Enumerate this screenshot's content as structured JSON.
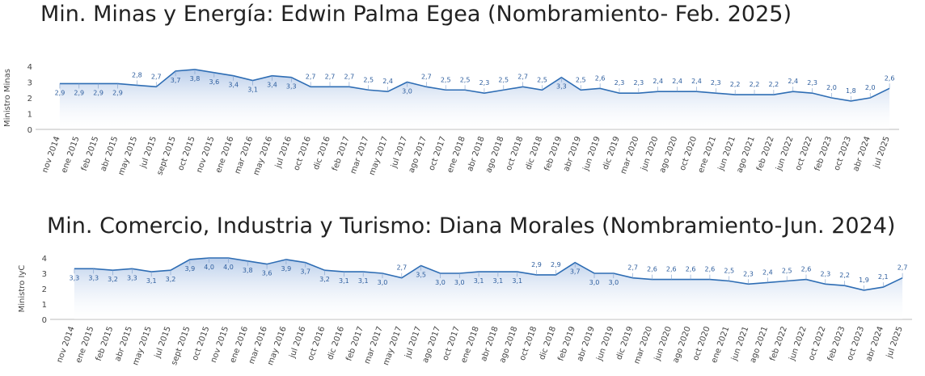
{
  "chart_data": [
    {
      "type": "area",
      "title": "Min. Minas y Energía: Edwin Palma Egea (Nombramiento- Feb. 2025)",
      "y_label": "Ministro Minas",
      "categories": [
        "nov 2014",
        "ene 2015",
        "feb 2015",
        "abr 2015",
        "may 2015",
        "jul 2015",
        "sept 2015",
        "oct 2015",
        "nov 2015",
        "ene 2016",
        "mar 2016",
        "may 2016",
        "jul 2016",
        "oct 2016",
        "dic 2016",
        "feb 2017",
        "mar 2017",
        "may 2017",
        "jul 2017",
        "ago 2017",
        "oct 2017",
        "ene 2018",
        "abr 2018",
        "ago 2018",
        "oct 2018",
        "dic 2018",
        "feb 2019",
        "abr 2019",
        "jun 2019",
        "dic 2019",
        "mar 2020",
        "jun 2020",
        "ago 2020",
        "oct 2020",
        "ene 2021",
        "jun 2021",
        "ago 2021",
        "feb 2022",
        "jun 2022",
        "oct 2022",
        "feb 2023",
        "oct 2023",
        "abr 2024",
        "jul 2025"
      ],
      "values": [
        2.9,
        2.9,
        2.9,
        2.9,
        2.8,
        2.7,
        3.7,
        3.8,
        3.6,
        3.4,
        3.1,
        3.4,
        3.3,
        2.7,
        2.7,
        2.7,
        2.5,
        2.4,
        3.0,
        2.7,
        2.5,
        2.5,
        2.3,
        2.5,
        2.7,
        2.5,
        3.3,
        2.5,
        2.6,
        2.3,
        2.3,
        2.4,
        2.4,
        2.4,
        2.3,
        2.2,
        2.2,
        2.2,
        2.4,
        2.3,
        2.0,
        1.8,
        2.0,
        2.6
      ],
      "value_labels": [
        "2,9",
        "2,9",
        "2,9",
        "2,9",
        "2,8",
        "2,7",
        "3,7",
        "3,8",
        "3,6",
        "3,4",
        "3,1",
        "3,4",
        "3,3",
        "2,7",
        "2,7",
        "2,7",
        "2,5",
        "2,4",
        "3,0",
        "2,7",
        "2,5",
        "2,5",
        "2,3",
        "2,5",
        "2,7",
        "2,5",
        "3,3",
        "2,5",
        "2,6",
        "2,3",
        "2,3",
        "2,4",
        "2,4",
        "2,4",
        "2,3",
        "2,2",
        "2,2",
        "2,2",
        "2,4",
        "2,3",
        "2,0",
        "1,8",
        "2,0",
        "2,6"
      ],
      "color": "#2e6db4",
      "ylim": [
        0,
        4
      ],
      "yticks": [
        0,
        1,
        2,
        3,
        4
      ]
    },
    {
      "type": "area",
      "title": "Min. Comercio, Industria y Turismo: Diana Morales (Nombramiento-Jun. 2024)",
      "y_label": "Ministro IyC",
      "categories": [
        "nov 2014",
        "ene 2015",
        "feb 2015",
        "abr 2015",
        "may 2015",
        "jul 2015",
        "sept 2015",
        "oct 2015",
        "nov 2015",
        "ene 2016",
        "mar 2016",
        "may 2016",
        "jul 2016",
        "oct 2016",
        "dic 2016",
        "feb 2017",
        "mar 2017",
        "may 2017",
        "jul 2017",
        "ago 2017",
        "oct 2017",
        "ene 2018",
        "abr 2018",
        "ago 2018",
        "oct 2018",
        "dic 2018",
        "feb 2019",
        "abr 2019",
        "jun 2019",
        "dic 2019",
        "mar 2020",
        "jun 2020",
        "ago 2020",
        "oct 2020",
        "ene 2021",
        "jun 2021",
        "ago 2021",
        "feb 2022",
        "jun 2022",
        "oct 2022",
        "feb 2023",
        "oct 2023",
        "abr 2024",
        "jul 2025"
      ],
      "values": [
        3.3,
        3.3,
        3.2,
        3.3,
        3.1,
        3.2,
        3.9,
        4.0,
        4.0,
        3.8,
        3.6,
        3.9,
        3.7,
        3.2,
        3.1,
        3.1,
        3.0,
        2.7,
        3.5,
        3.0,
        3.0,
        3.1,
        3.1,
        3.1,
        2.9,
        2.9,
        3.7,
        3.0,
        3.0,
        2.7,
        2.6,
        2.6,
        2.6,
        2.6,
        2.5,
        2.3,
        2.4,
        2.5,
        2.6,
        2.3,
        2.2,
        1.9,
        2.1,
        2.7
      ],
      "value_labels": [
        "3,3",
        "3,3",
        "3,2",
        "3,3",
        "3,1",
        "3,2",
        "3,9",
        "4,0",
        "4,0",
        "3,8",
        "3,6",
        "3,9",
        "3,7",
        "3,2",
        "3,1",
        "3,1",
        "3,0",
        "2,7",
        "3,5",
        "3,0",
        "3,0",
        "3,1",
        "3,1",
        "3,1",
        "2,9",
        "2,9",
        "3,7",
        "3,0",
        "3,0",
        "2,7",
        "2,6",
        "2,6",
        "2,6",
        "2,6",
        "2,5",
        "2,3",
        "2,4",
        "2,5",
        "2,6",
        "2,3",
        "2,2",
        "1,9",
        "2,1",
        "2,7"
      ],
      "color": "#2e6db4",
      "ylim": [
        0,
        4
      ],
      "yticks": [
        0,
        1,
        2,
        3,
        4
      ]
    }
  ]
}
